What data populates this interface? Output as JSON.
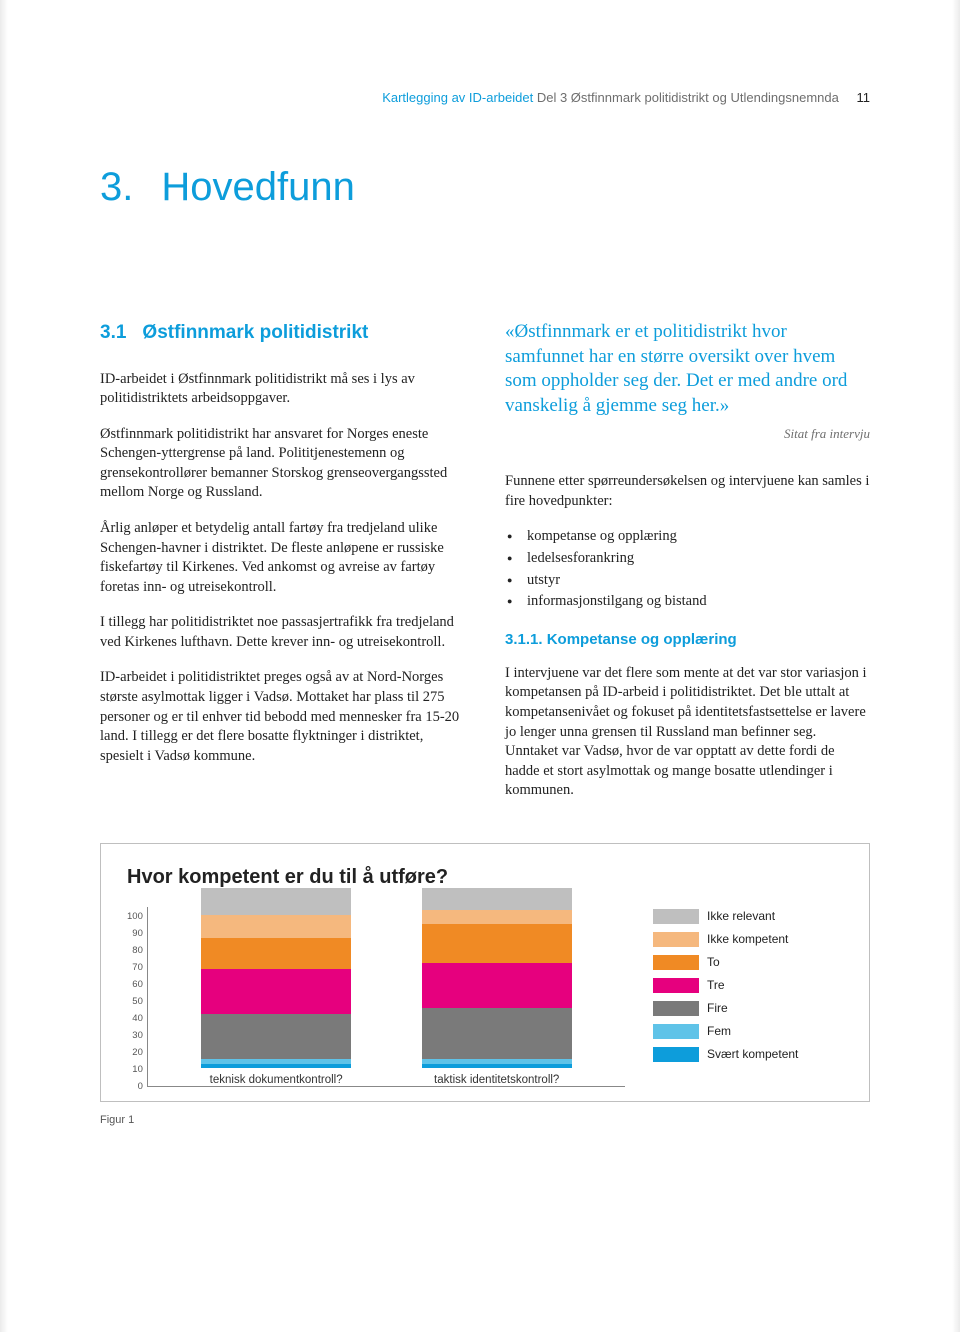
{
  "running_head": {
    "blue": "Kartlegging av ID-arbeidet",
    "gray": "Del 3 Østfinnmark politidistrikt og Utlendingsnemnda",
    "page_number": "11"
  },
  "chapter": {
    "number": "3.",
    "title": "Hovedfunn"
  },
  "section": {
    "number": "3.1",
    "title": "Østfinnmark politidistrikt"
  },
  "left_paragraphs": [
    "ID-arbeidet i Østfinnmark politidistrikt må ses i lys av politidistriktets arbeidsoppgaver.",
    "Østfinnmark politidistrikt har ansvaret for Norges eneste Schengen-yttergrense på land. Polititjenestemenn og grensekontrollører bemanner Storskog grenseovergangssted mellom Norge og Russland.",
    "Årlig anløper et betydelig antall fartøy fra tredjeland ulike Schengen-havner i distriktet. De fleste anløpene er russiske fiskefartøy til Kirkenes. Ved ankomst og avreise av fartøy foretas inn- og utreisekontroll.",
    "I tillegg har politidistriktet noe passasjertrafikk fra tredjeland ved Kirkenes lufthavn. Dette krever inn- og utreisekontroll.",
    "ID-arbeidet i politidistriktet preges også av at Nord-Norges største asylmottak ligger i Vadsø. Mottaket har plass til 275 personer og er til enhver tid bebodd med mennesker fra 15-20 land. I tillegg er det flere bosatte flyktninger i distriktet, spesielt i Vadsø kommune."
  ],
  "quote": "«Østfinnmark er et politidistrikt hvor samfunnet har en større oversikt over hvem som oppholder seg der. Det er med andre ord vanskelig å gjemme seg her.»",
  "quote_source": "Sitat fra intervju",
  "right_intro": "Funnene etter spørreundersøkelsen og intervjuene kan samles i fire hovedpunkter:",
  "bullets": [
    "kompetanse og opplæring",
    "ledelsesforankring",
    "utstyr",
    "informasjonstilgang og bistand"
  ],
  "subsection": "3.1.1. Kompetanse og opplæring",
  "right_body": "I intervjuene var det flere som mente at det var stor variasjon i kompetansen på ID-arbeid i politidistriktet. Det ble uttalt at kompetansenivået og fokuset på identitetsfastsettelse er lavere jo lenger unna grensen til Russland man befinner seg. Unntaket var Vadsø, hvor de var opptatt av dette fordi de hadde et stort asylmottak og mange bosatte utlendinger i kommunen.",
  "figure": {
    "title": "Hvor kompetent er du til å utføre?",
    "ylim": [
      0,
      100
    ],
    "ytick_step": 10,
    "categories": [
      "teknisk dokumentkontroll?",
      "taktisk identitetskontroll?"
    ],
    "legend_labels": [
      "Ikke relevant",
      "Ikke kompetent",
      "To",
      "Tre",
      "Fire",
      "Fem",
      "Svært kompetent"
    ],
    "legend_colors": [
      "#bfbfbf",
      "#f5b87e",
      "#f08a24",
      "#e6007e",
      "#7a7a7a",
      "#5fc3e8",
      "#0d9ddb"
    ],
    "series": [
      {
        "name": "Svært kompetent",
        "color": "#0d9ddb",
        "values": [
          2,
          2
        ]
      },
      {
        "name": "Fem",
        "color": "#5fc3e8",
        "values": [
          3,
          3
        ]
      },
      {
        "name": "Fire",
        "color": "#7a7a7a",
        "values": [
          25,
          28
        ]
      },
      {
        "name": "Tre",
        "color": "#e6007e",
        "values": [
          25,
          25
        ]
      },
      {
        "name": "To",
        "color": "#f08a24",
        "values": [
          17,
          22
        ]
      },
      {
        "name": "Ikke kompetent",
        "color": "#f5b87e",
        "values": [
          13,
          8
        ]
      },
      {
        "name": "Ikke relevant",
        "color": "#bfbfbf",
        "values": [
          15,
          12
        ]
      }
    ],
    "caption": "Figur 1"
  }
}
